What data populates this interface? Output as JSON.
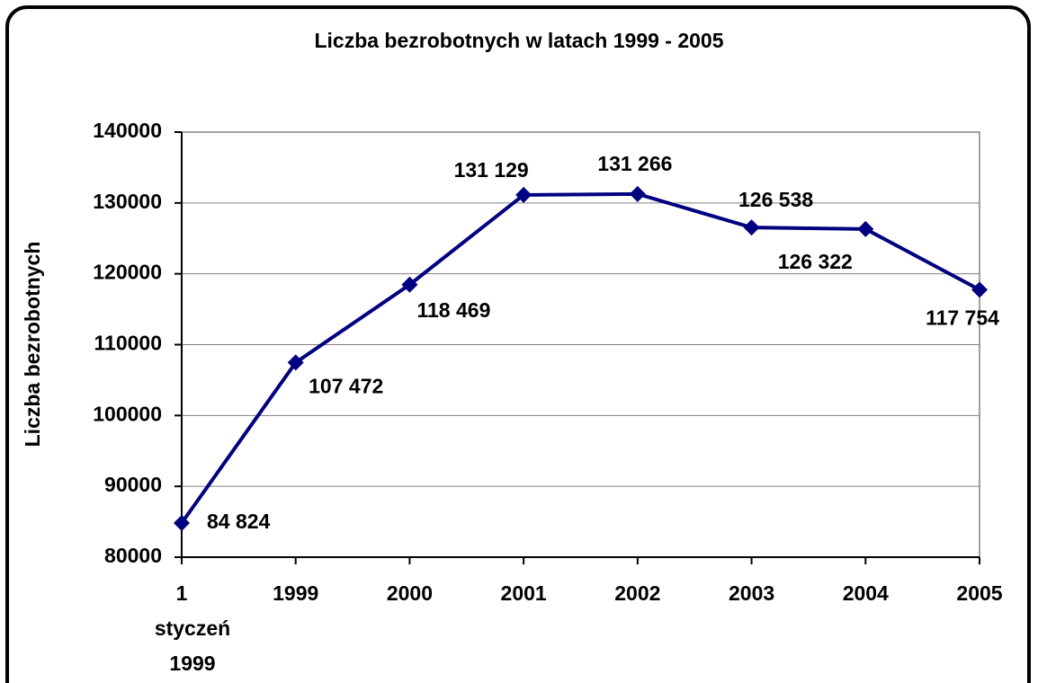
{
  "chart_data": {
    "type": "line",
    "title": "Liczba bezrobotnych w latach 1999 - 2005",
    "y_label": "Liczba bezrobotnych",
    "categories": [
      "1\nstyczeń\n1999",
      "1999",
      "2000",
      "2001",
      "2002",
      "2003",
      "2004",
      "2005"
    ],
    "series": [
      {
        "name": "Liczba bezrobotnych",
        "color": "#000080",
        "values": [
          84824,
          107472,
          118469,
          131129,
          131266,
          126538,
          126322,
          117754
        ],
        "value_labels": [
          "84 824",
          "107 472",
          "118 469",
          "131 129",
          "131 266",
          "126 538",
          "126 322",
          "117 754"
        ]
      }
    ],
    "ylim": [
      80000,
      140000
    ],
    "yticks": [
      80000,
      90000,
      100000,
      110000,
      120000,
      130000,
      140000
    ],
    "grid": true
  }
}
